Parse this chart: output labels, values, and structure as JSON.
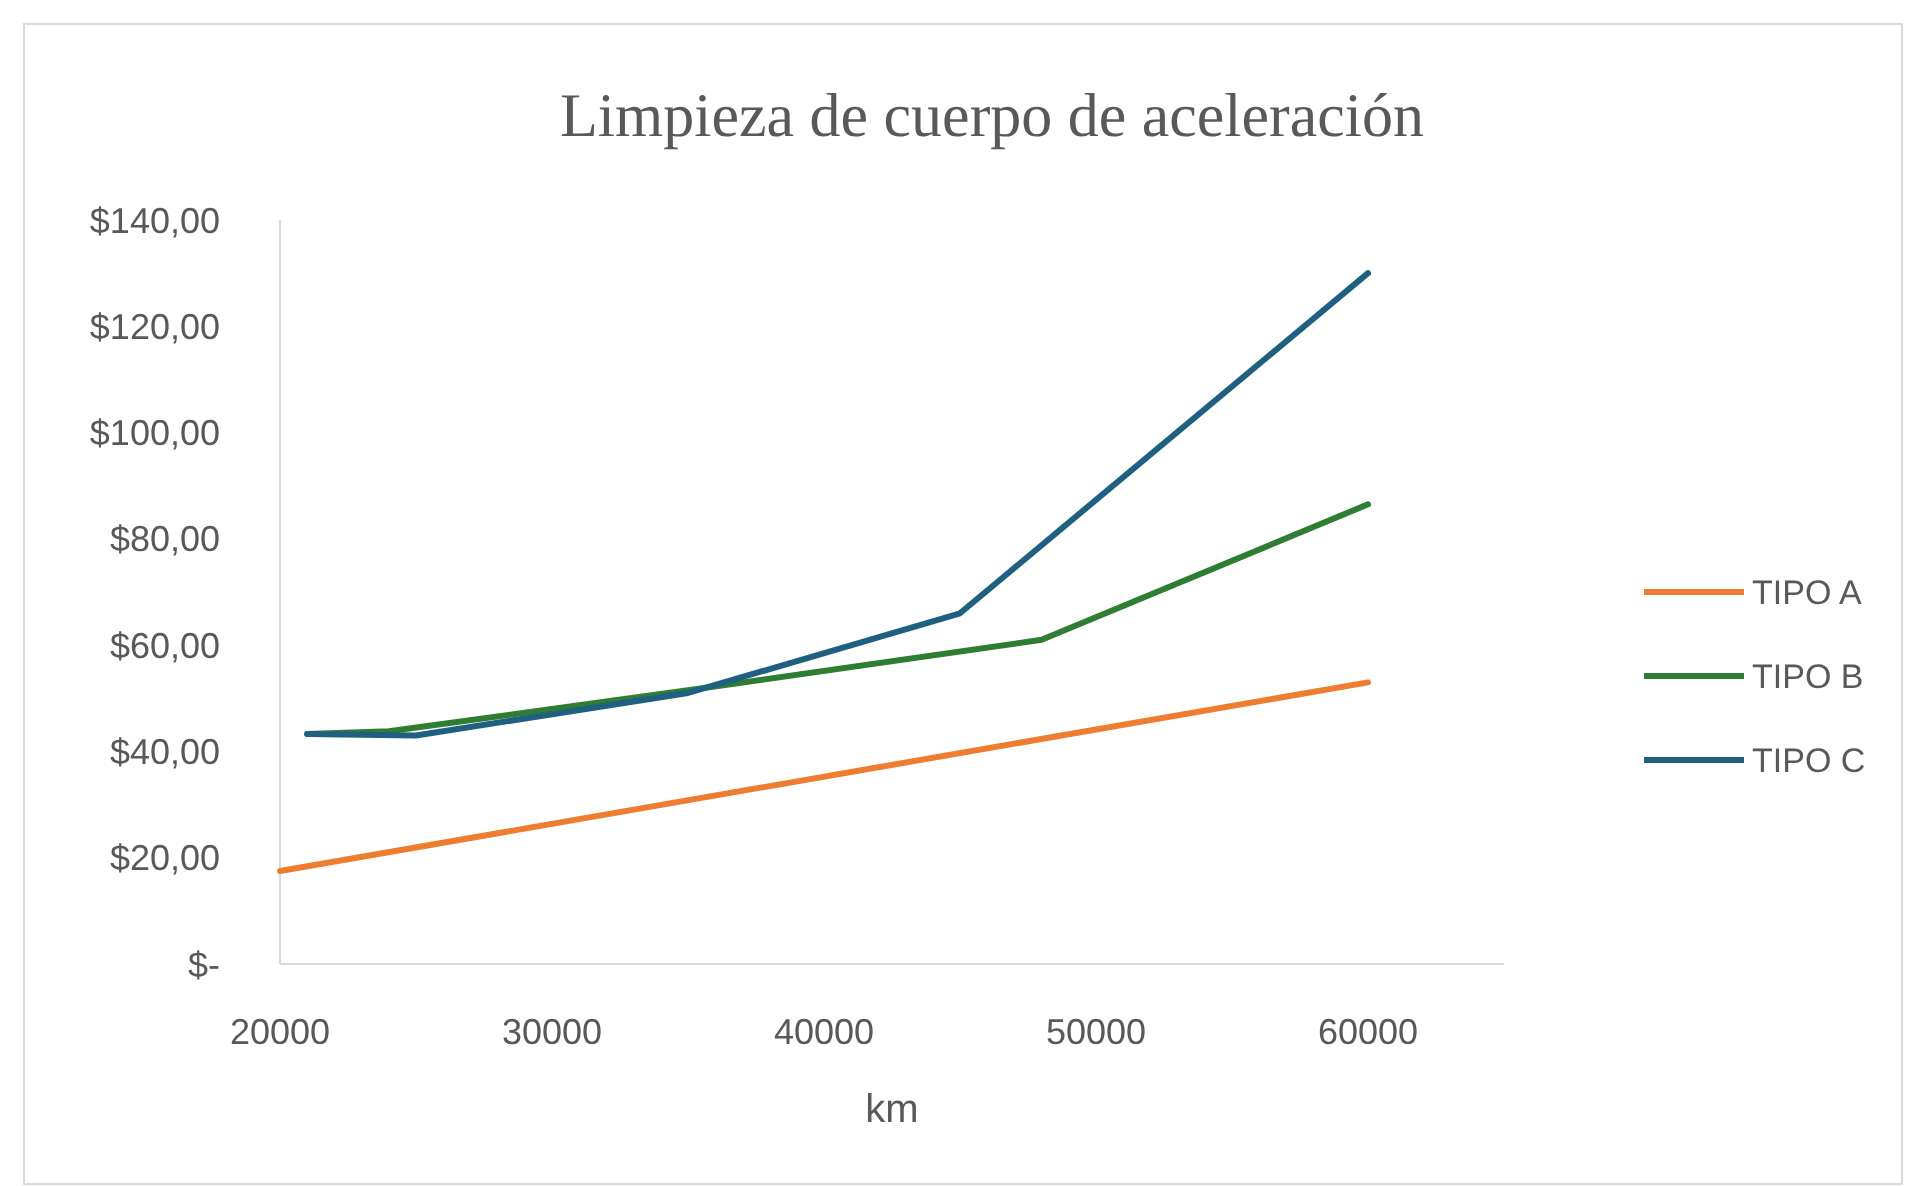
{
  "chart_data": {
    "type": "line",
    "title": "Limpieza de cuerpo de aceleración",
    "xlabel": "km",
    "xlim": [
      20000,
      65000
    ],
    "xticks": [
      20000,
      30000,
      40000,
      50000,
      60000
    ],
    "ylim": [
      0,
      140
    ],
    "yticks": [
      {
        "value": 0,
        "label": "$-"
      },
      {
        "value": 20,
        "label": "$20,00"
      },
      {
        "value": 40,
        "label": "$40,00"
      },
      {
        "value": 60,
        "label": "$60,00"
      },
      {
        "value": 80,
        "label": "$80,00"
      },
      {
        "value": 100,
        "label": "$100,00"
      },
      {
        "value": 120,
        "label": "$120,00"
      },
      {
        "value": 140,
        "label": "$140,00"
      }
    ],
    "grid": false,
    "legend": "right",
    "marker": "none",
    "line_style": "solid",
    "series": [
      {
        "name": "TIPO A",
        "color": "#ed7d31",
        "x": [
          20000,
          60000
        ],
        "values": [
          17.5,
          53
        ]
      },
      {
        "name": "TIPO B",
        "color": "#2e7d32",
        "x": [
          21000,
          24000,
          35000,
          48000,
          60000
        ],
        "values": [
          43.3,
          43.8,
          51.5,
          61,
          86.5
        ]
      },
      {
        "name": "TIPO C",
        "color": "#1f5f7f",
        "x": [
          21000,
          25000,
          35000,
          45000,
          60000
        ],
        "values": [
          43.3,
          43,
          51,
          66,
          130
        ]
      }
    ]
  }
}
